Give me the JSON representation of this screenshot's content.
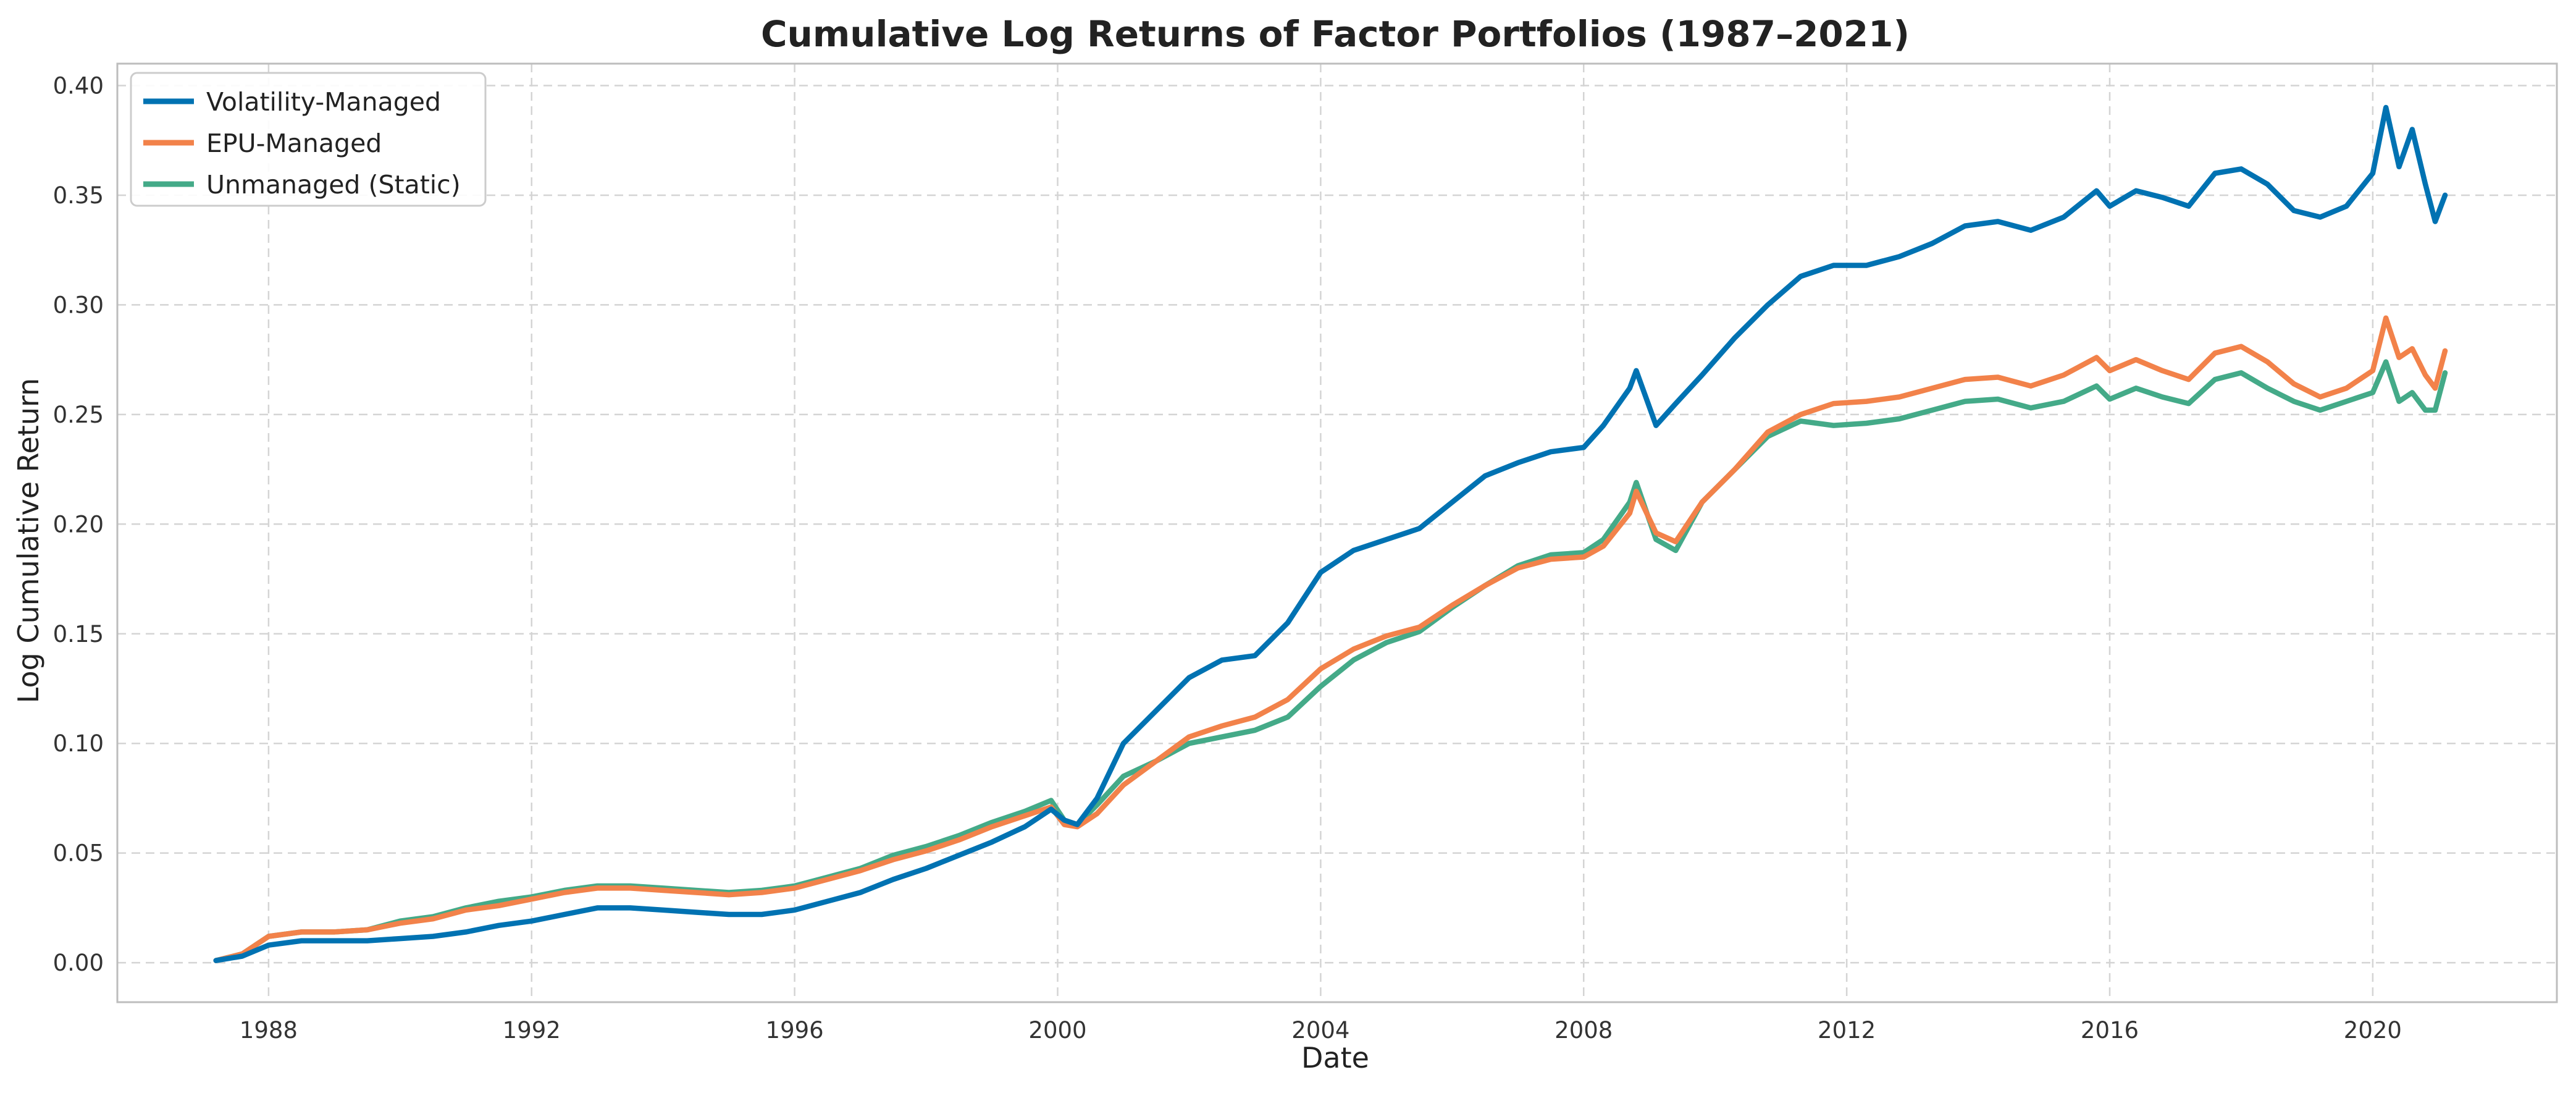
{
  "chart_data": {
    "type": "line",
    "title": "Cumulative Log Returns of Factor Portfolios (1987–2021)",
    "xlabel": "Date",
    "ylabel": "Log Cumulative Return",
    "xlim": [
      1985.7,
      2022.8
    ],
    "ylim": [
      -0.018,
      0.41
    ],
    "x_ticks": [
      1988,
      1992,
      1996,
      2000,
      2004,
      2008,
      2012,
      2016,
      2020
    ],
    "x_tick_labels": [
      "1988",
      "1992",
      "1996",
      "2000",
      "2004",
      "2008",
      "2012",
      "2016",
      "2020"
    ],
    "y_ticks": [
      0.0,
      0.05,
      0.1,
      0.15,
      0.2,
      0.25,
      0.3,
      0.35,
      0.4
    ],
    "y_tick_labels": [
      "0.00",
      "0.05",
      "0.10",
      "0.15",
      "0.20",
      "0.25",
      "0.30",
      "0.35",
      "0.40"
    ],
    "grid": true,
    "legend_position": "top-left",
    "series": [
      {
        "name": "Volatility-Managed",
        "color": "#0072b2",
        "points": [
          [
            1987.2,
            0.001
          ],
          [
            1987.6,
            0.003
          ],
          [
            1988.0,
            0.008
          ],
          [
            1988.5,
            0.01
          ],
          [
            1989.0,
            0.01
          ],
          [
            1989.5,
            0.01
          ],
          [
            1990.0,
            0.011
          ],
          [
            1990.5,
            0.012
          ],
          [
            1991.0,
            0.014
          ],
          [
            1991.5,
            0.017
          ],
          [
            1992.0,
            0.019
          ],
          [
            1992.5,
            0.022
          ],
          [
            1993.0,
            0.025
          ],
          [
            1993.5,
            0.025
          ],
          [
            1994.0,
            0.024
          ],
          [
            1994.5,
            0.023
          ],
          [
            1995.0,
            0.022
          ],
          [
            1995.5,
            0.022
          ],
          [
            1996.0,
            0.024
          ],
          [
            1996.5,
            0.028
          ],
          [
            1997.0,
            0.032
          ],
          [
            1997.5,
            0.038
          ],
          [
            1998.0,
            0.043
          ],
          [
            1998.5,
            0.049
          ],
          [
            1999.0,
            0.055
          ],
          [
            1999.5,
            0.062
          ],
          [
            1999.9,
            0.07
          ],
          [
            2000.1,
            0.065
          ],
          [
            2000.3,
            0.063
          ],
          [
            2000.6,
            0.075
          ],
          [
            2001.0,
            0.1
          ],
          [
            2001.5,
            0.115
          ],
          [
            2002.0,
            0.13
          ],
          [
            2002.5,
            0.138
          ],
          [
            2003.0,
            0.14
          ],
          [
            2003.5,
            0.155
          ],
          [
            2004.0,
            0.178
          ],
          [
            2004.5,
            0.188
          ],
          [
            2005.0,
            0.193
          ],
          [
            2005.5,
            0.198
          ],
          [
            2006.0,
            0.21
          ],
          [
            2006.5,
            0.222
          ],
          [
            2007.0,
            0.228
          ],
          [
            2007.5,
            0.233
          ],
          [
            2008.0,
            0.235
          ],
          [
            2008.3,
            0.245
          ],
          [
            2008.7,
            0.262
          ],
          [
            2008.8,
            0.27
          ],
          [
            2009.1,
            0.245
          ],
          [
            2009.4,
            0.255
          ],
          [
            2009.8,
            0.268
          ],
          [
            2010.3,
            0.285
          ],
          [
            2010.8,
            0.3
          ],
          [
            2011.3,
            0.313
          ],
          [
            2011.8,
            0.318
          ],
          [
            2012.3,
            0.318
          ],
          [
            2012.8,
            0.322
          ],
          [
            2013.3,
            0.328
          ],
          [
            2013.8,
            0.336
          ],
          [
            2014.3,
            0.338
          ],
          [
            2014.8,
            0.334
          ],
          [
            2015.3,
            0.34
          ],
          [
            2015.8,
            0.352
          ],
          [
            2016.0,
            0.345
          ],
          [
            2016.4,
            0.352
          ],
          [
            2016.8,
            0.349
          ],
          [
            2017.2,
            0.345
          ],
          [
            2017.6,
            0.36
          ],
          [
            2018.0,
            0.362
          ],
          [
            2018.4,
            0.355
          ],
          [
            2018.8,
            0.343
          ],
          [
            2019.2,
            0.34
          ],
          [
            2019.6,
            0.345
          ],
          [
            2020.0,
            0.36
          ],
          [
            2020.2,
            0.39
          ],
          [
            2020.4,
            0.363
          ],
          [
            2020.6,
            0.38
          ],
          [
            2020.8,
            0.355
          ],
          [
            2020.95,
            0.338
          ],
          [
            2021.1,
            0.35
          ]
        ]
      },
      {
        "name": "EPU-Managed",
        "color": "#f2824a",
        "points": [
          [
            1987.2,
            0.001
          ],
          [
            1987.6,
            0.004
          ],
          [
            1988.0,
            0.012
          ],
          [
            1988.5,
            0.014
          ],
          [
            1989.0,
            0.014
          ],
          [
            1989.5,
            0.015
          ],
          [
            1990.0,
            0.018
          ],
          [
            1990.5,
            0.02
          ],
          [
            1991.0,
            0.024
          ],
          [
            1991.5,
            0.026
          ],
          [
            1992.0,
            0.029
          ],
          [
            1992.5,
            0.032
          ],
          [
            1993.0,
            0.034
          ],
          [
            1993.5,
            0.034
          ],
          [
            1994.0,
            0.033
          ],
          [
            1994.5,
            0.032
          ],
          [
            1995.0,
            0.031
          ],
          [
            1995.5,
            0.032
          ],
          [
            1996.0,
            0.034
          ],
          [
            1996.5,
            0.038
          ],
          [
            1997.0,
            0.042
          ],
          [
            1997.5,
            0.047
          ],
          [
            1998.0,
            0.051
          ],
          [
            1998.5,
            0.056
          ],
          [
            1999.0,
            0.062
          ],
          [
            1999.5,
            0.067
          ],
          [
            1999.9,
            0.071
          ],
          [
            2000.1,
            0.063
          ],
          [
            2000.3,
            0.062
          ],
          [
            2000.6,
            0.068
          ],
          [
            2001.0,
            0.081
          ],
          [
            2001.5,
            0.092
          ],
          [
            2002.0,
            0.103
          ],
          [
            2002.5,
            0.108
          ],
          [
            2003.0,
            0.112
          ],
          [
            2003.5,
            0.12
          ],
          [
            2004.0,
            0.134
          ],
          [
            2004.5,
            0.143
          ],
          [
            2005.0,
            0.149
          ],
          [
            2005.5,
            0.153
          ],
          [
            2006.0,
            0.163
          ],
          [
            2006.5,
            0.172
          ],
          [
            2007.0,
            0.18
          ],
          [
            2007.5,
            0.184
          ],
          [
            2008.0,
            0.185
          ],
          [
            2008.3,
            0.19
          ],
          [
            2008.7,
            0.205
          ],
          [
            2008.8,
            0.215
          ],
          [
            2009.1,
            0.196
          ],
          [
            2009.4,
            0.192
          ],
          [
            2009.8,
            0.21
          ],
          [
            2010.3,
            0.225
          ],
          [
            2010.8,
            0.242
          ],
          [
            2011.3,
            0.25
          ],
          [
            2011.8,
            0.255
          ],
          [
            2012.3,
            0.256
          ],
          [
            2012.8,
            0.258
          ],
          [
            2013.3,
            0.262
          ],
          [
            2013.8,
            0.266
          ],
          [
            2014.3,
            0.267
          ],
          [
            2014.8,
            0.263
          ],
          [
            2015.3,
            0.268
          ],
          [
            2015.8,
            0.276
          ],
          [
            2016.0,
            0.27
          ],
          [
            2016.4,
            0.275
          ],
          [
            2016.8,
            0.27
          ],
          [
            2017.2,
            0.266
          ],
          [
            2017.6,
            0.278
          ],
          [
            2018.0,
            0.281
          ],
          [
            2018.4,
            0.274
          ],
          [
            2018.8,
            0.264
          ],
          [
            2019.2,
            0.258
          ],
          [
            2019.6,
            0.262
          ],
          [
            2020.0,
            0.27
          ],
          [
            2020.2,
            0.294
          ],
          [
            2020.4,
            0.276
          ],
          [
            2020.6,
            0.28
          ],
          [
            2020.8,
            0.268
          ],
          [
            2020.95,
            0.262
          ],
          [
            2021.1,
            0.279
          ]
        ]
      },
      {
        "name": "Unmanaged (Static)",
        "color": "#44aa88",
        "points": [
          [
            1987.2,
            0.001
          ],
          [
            1987.6,
            0.004
          ],
          [
            1988.0,
            0.012
          ],
          [
            1988.5,
            0.014
          ],
          [
            1989.0,
            0.014
          ],
          [
            1989.5,
            0.015
          ],
          [
            1990.0,
            0.019
          ],
          [
            1990.5,
            0.021
          ],
          [
            1991.0,
            0.025
          ],
          [
            1991.5,
            0.028
          ],
          [
            1992.0,
            0.03
          ],
          [
            1992.5,
            0.033
          ],
          [
            1993.0,
            0.035
          ],
          [
            1993.5,
            0.035
          ],
          [
            1994.0,
            0.034
          ],
          [
            1994.5,
            0.033
          ],
          [
            1995.0,
            0.032
          ],
          [
            1995.5,
            0.033
          ],
          [
            1996.0,
            0.035
          ],
          [
            1996.5,
            0.039
          ],
          [
            1997.0,
            0.043
          ],
          [
            1997.5,
            0.049
          ],
          [
            1998.0,
            0.053
          ],
          [
            1998.5,
            0.058
          ],
          [
            1999.0,
            0.064
          ],
          [
            1999.5,
            0.069
          ],
          [
            1999.9,
            0.074
          ],
          [
            2000.1,
            0.065
          ],
          [
            2000.3,
            0.063
          ],
          [
            2000.6,
            0.072
          ],
          [
            2001.0,
            0.085
          ],
          [
            2001.5,
            0.092
          ],
          [
            2002.0,
            0.1
          ],
          [
            2002.5,
            0.103
          ],
          [
            2003.0,
            0.106
          ],
          [
            2003.5,
            0.112
          ],
          [
            2004.0,
            0.126
          ],
          [
            2004.5,
            0.138
          ],
          [
            2005.0,
            0.146
          ],
          [
            2005.5,
            0.151
          ],
          [
            2006.0,
            0.162
          ],
          [
            2006.5,
            0.172
          ],
          [
            2007.0,
            0.181
          ],
          [
            2007.5,
            0.186
          ],
          [
            2008.0,
            0.187
          ],
          [
            2008.3,
            0.193
          ],
          [
            2008.7,
            0.21
          ],
          [
            2008.8,
            0.219
          ],
          [
            2009.1,
            0.193
          ],
          [
            2009.4,
            0.188
          ],
          [
            2009.8,
            0.21
          ],
          [
            2010.3,
            0.225
          ],
          [
            2010.8,
            0.24
          ],
          [
            2011.3,
            0.247
          ],
          [
            2011.8,
            0.245
          ],
          [
            2012.3,
            0.246
          ],
          [
            2012.8,
            0.248
          ],
          [
            2013.3,
            0.252
          ],
          [
            2013.8,
            0.256
          ],
          [
            2014.3,
            0.257
          ],
          [
            2014.8,
            0.253
          ],
          [
            2015.3,
            0.256
          ],
          [
            2015.8,
            0.263
          ],
          [
            2016.0,
            0.257
          ],
          [
            2016.4,
            0.262
          ],
          [
            2016.8,
            0.258
          ],
          [
            2017.2,
            0.255
          ],
          [
            2017.6,
            0.266
          ],
          [
            2018.0,
            0.269
          ],
          [
            2018.4,
            0.262
          ],
          [
            2018.8,
            0.256
          ],
          [
            2019.2,
            0.252
          ],
          [
            2019.6,
            0.256
          ],
          [
            2020.0,
            0.26
          ],
          [
            2020.2,
            0.274
          ],
          [
            2020.4,
            0.256
          ],
          [
            2020.6,
            0.26
          ],
          [
            2020.8,
            0.252
          ],
          [
            2020.95,
            0.252
          ],
          [
            2021.1,
            0.269
          ]
        ]
      }
    ]
  }
}
